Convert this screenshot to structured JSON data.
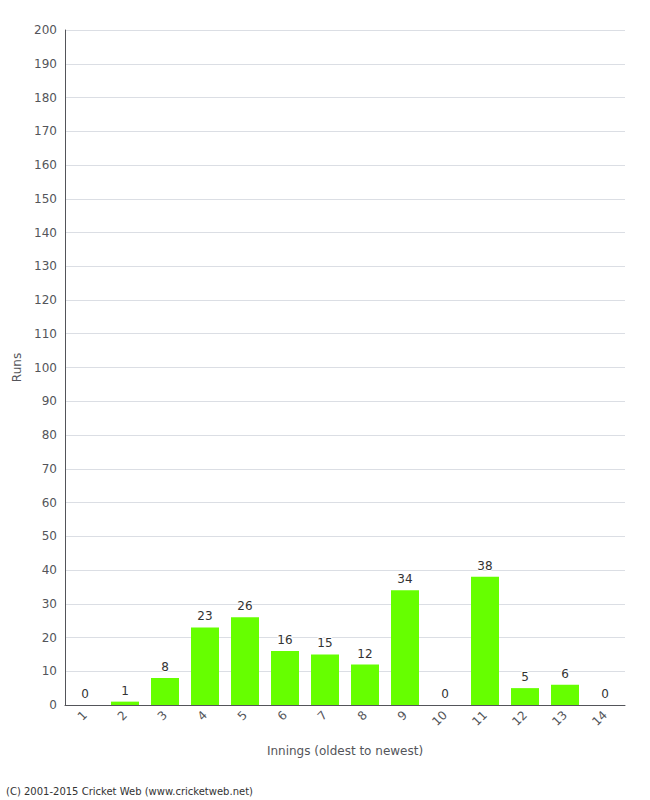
{
  "chart_data": {
    "type": "bar",
    "xlabel": "Innings (oldest to newest)",
    "ylabel": "Runs",
    "categories": [
      "1",
      "2",
      "3",
      "4",
      "5",
      "6",
      "7",
      "8",
      "9",
      "10",
      "11",
      "12",
      "13",
      "14"
    ],
    "values": [
      0,
      1,
      8,
      23,
      26,
      16,
      15,
      12,
      34,
      0,
      38,
      5,
      6,
      0
    ],
    "color": "#66ff00",
    "ylim": [
      0,
      200
    ],
    "yticks": [
      0,
      10,
      20,
      30,
      40,
      50,
      60,
      70,
      80,
      90,
      100,
      110,
      120,
      130,
      140,
      150,
      160,
      170,
      180,
      190,
      200
    ],
    "grid": true,
    "data_labels": true,
    "annotation": "(C) 2001-2015 Cricket Web (www.cricketweb.net)"
  }
}
